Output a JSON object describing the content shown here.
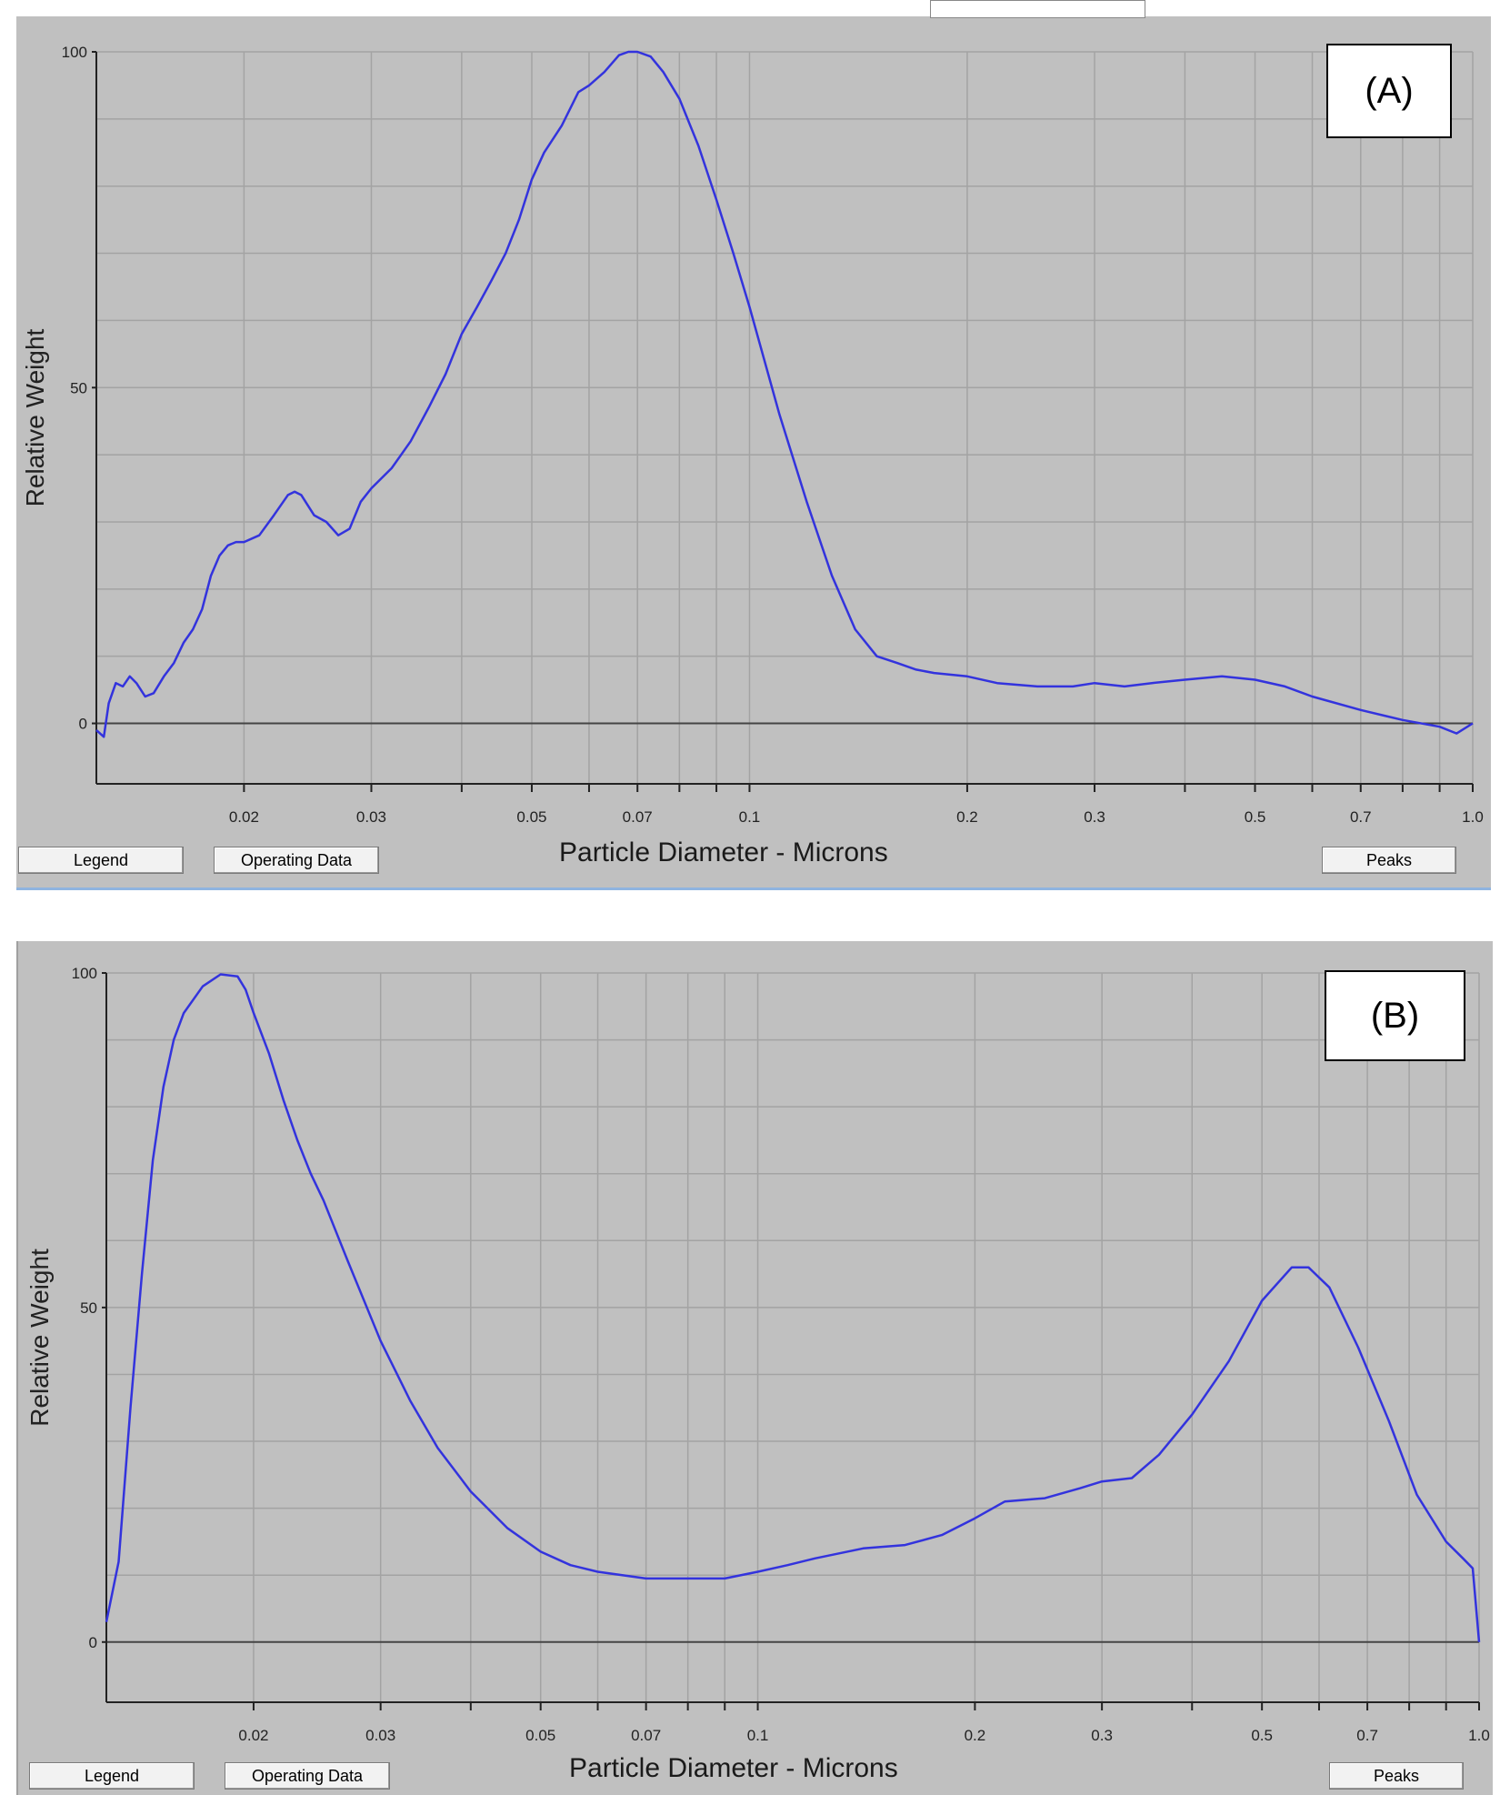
{
  "buttons": {
    "legend": "Legend",
    "operating_data": "Operating Data",
    "peaks": "Peaks"
  },
  "chart_data": [
    {
      "type": "line",
      "panel_label": "(A)",
      "xlabel": "Particle Diameter - Microns",
      "ylabel": "Relative Weight",
      "xscale": "log",
      "xlim": [
        0.0125,
        1.0
      ],
      "ylim": [
        -9,
        100
      ],
      "x_ticks": [
        "0.02",
        "0.03",
        "0.05",
        "0.07",
        "0.1",
        "0.2",
        "0.3",
        "0.5",
        "0.7",
        "1.0"
      ],
      "y_ticks": [
        "0",
        "50",
        "100"
      ],
      "grid": true,
      "line_color": "#3333dd",
      "series": [
        {
          "x": [
            0.0125,
            0.0128,
            0.013,
            0.0133,
            0.0136,
            0.0139,
            0.0142,
            0.0146,
            0.015,
            0.0155,
            0.016,
            0.0165,
            0.017,
            0.0175,
            0.018,
            0.0185,
            0.019,
            0.0195,
            0.02,
            0.021,
            0.022,
            0.023,
            0.0235,
            0.024,
            0.025,
            0.026,
            0.027,
            0.028,
            0.029,
            0.03,
            0.032,
            0.034,
            0.036,
            0.038,
            0.04,
            0.042,
            0.044,
            0.046,
            0.048,
            0.05,
            0.052,
            0.055,
            0.058,
            0.06,
            0.063,
            0.066,
            0.068,
            0.07,
            0.073,
            0.076,
            0.08,
            0.085,
            0.09,
            0.095,
            0.1,
            0.11,
            0.12,
            0.13,
            0.14,
            0.15,
            0.16,
            0.17,
            0.18,
            0.2,
            0.22,
            0.25,
            0.28,
            0.3,
            0.33,
            0.36,
            0.4,
            0.45,
            0.5,
            0.55,
            0.6,
            0.7,
            0.8,
            0.9,
            0.95,
            1.0
          ],
          "y": [
            -1,
            -2,
            3,
            6,
            5.5,
            7,
            6,
            4,
            4.5,
            7,
            9,
            12,
            14,
            17,
            22,
            25,
            26.5,
            27,
            27,
            28,
            31,
            34,
            34.5,
            34,
            31,
            30,
            28,
            29,
            33,
            35,
            38,
            42,
            47,
            52,
            58,
            62,
            66,
            70,
            75,
            81,
            85,
            89,
            94,
            95,
            97,
            99.5,
            100,
            100,
            99.3,
            97,
            93,
            86,
            78,
            70,
            62,
            46,
            33,
            22,
            14,
            10,
            9,
            8,
            7.5,
            7,
            6,
            5.5,
            5.5,
            6,
            5.5,
            6,
            6.5,
            7,
            6.5,
            5.5,
            4,
            2,
            0.5,
            -0.5,
            -1.5,
            0
          ]
        }
      ]
    },
    {
      "type": "line",
      "panel_label": "(B)",
      "xlabel": "Particle Diameter - Microns",
      "ylabel": "Relative Weight",
      "xscale": "log",
      "xlim": [
        0.0125,
        1.0
      ],
      "ylim": [
        -9,
        100
      ],
      "x_ticks": [
        "0.02",
        "0.03",
        "0.05",
        "0.07",
        "0.1",
        "0.2",
        "0.3",
        "0.5",
        "0.7",
        "1.0"
      ],
      "y_ticks": [
        "0",
        "50",
        "100"
      ],
      "grid": true,
      "line_color": "#3333dd",
      "series": [
        {
          "x": [
            0.0125,
            0.013,
            0.0135,
            0.014,
            0.0145,
            0.015,
            0.0155,
            0.016,
            0.017,
            0.018,
            0.019,
            0.0195,
            0.02,
            0.021,
            0.022,
            0.023,
            0.024,
            0.025,
            0.027,
            0.03,
            0.033,
            0.036,
            0.04,
            0.045,
            0.05,
            0.055,
            0.06,
            0.07,
            0.08,
            0.09,
            0.1,
            0.11,
            0.12,
            0.14,
            0.16,
            0.18,
            0.2,
            0.22,
            0.25,
            0.28,
            0.3,
            0.33,
            0.36,
            0.4,
            0.45,
            0.5,
            0.55,
            0.58,
            0.62,
            0.68,
            0.75,
            0.82,
            0.9,
            0.95,
            0.98,
            1.0
          ],
          "y": [
            3,
            12,
            35,
            55,
            72,
            83,
            90,
            94,
            98,
            99.8,
            99.5,
            97.5,
            94,
            88,
            81,
            75,
            70,
            66,
            57,
            45,
            36,
            29,
            22.5,
            17,
            13.5,
            11.5,
            10.5,
            9.5,
            9.5,
            9.5,
            10.5,
            11.5,
            12.5,
            14,
            14.5,
            16,
            18.5,
            21,
            21.5,
            23,
            24,
            24.5,
            28,
            34,
            42,
            51,
            56,
            56,
            53,
            44,
            33,
            22,
            15,
            12.5,
            11,
            0
          ]
        }
      ]
    }
  ]
}
